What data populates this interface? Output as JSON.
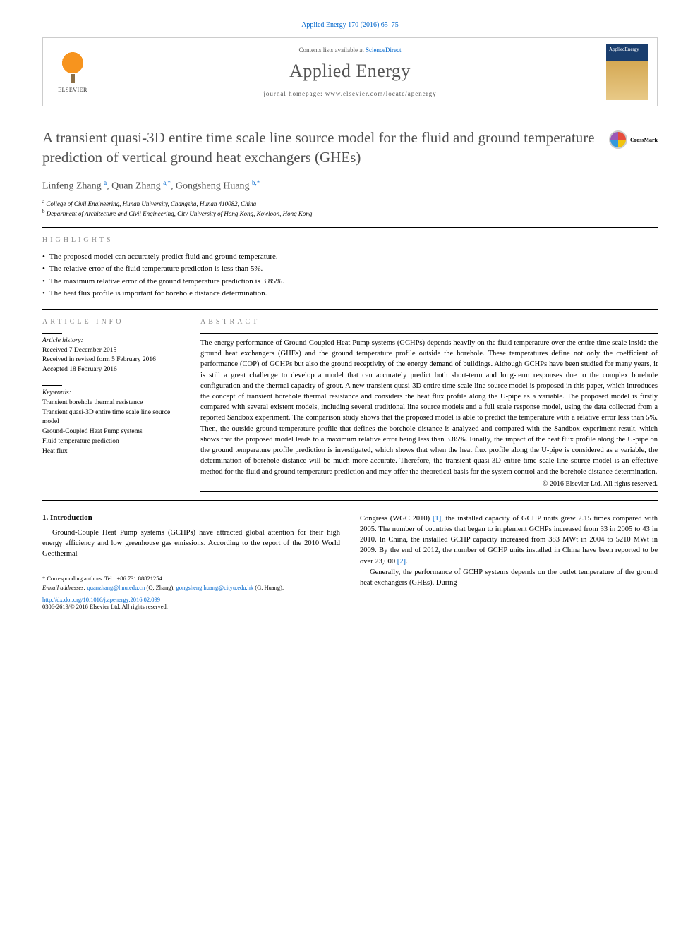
{
  "header": {
    "citation": "Applied Energy 170 (2016) 65–75",
    "contents_prefix": "Contents lists available at",
    "contents_link": "ScienceDirect",
    "journal_name": "Applied Energy",
    "homepage_label": "journal homepage: www.elsevier.com/locate/apenergy",
    "publisher": "ELSEVIER",
    "cover_label": "AppliedEnergy"
  },
  "article": {
    "title": "A transient quasi-3D entire time scale line source model for the fluid and ground temperature prediction of vertical ground heat exchangers (GHEs)",
    "crossmark": "CrossMark",
    "authors_html": "Linfeng Zhang <sup>a</sup>, Quan Zhang <sup>a,*</sup>, Gongsheng Huang <sup>b,*</sup>",
    "affiliations": [
      {
        "sup": "a",
        "text": "College of Civil Engineering, Hunan University, Changsha, Hunan 410082, China"
      },
      {
        "sup": "b",
        "text": "Department of Architecture and Civil Engineering, City University of Hong Kong, Kowloon, Hong Kong"
      }
    ]
  },
  "highlights": {
    "label": "HIGHLIGHTS",
    "items": [
      "The proposed model can accurately predict fluid and ground temperature.",
      "The relative error of the fluid temperature prediction is less than 5%.",
      "The maximum relative error of the ground temperature prediction is 3.85%.",
      "The heat flux profile is important for borehole distance determination."
    ]
  },
  "info": {
    "article_info_label": "ARTICLE INFO",
    "history_label": "Article history:",
    "received": "Received 7 December 2015",
    "revised": "Received in revised form 5 February 2016",
    "accepted": "Accepted 18 February 2016",
    "keywords_label": "Keywords:",
    "keywords": [
      "Transient borehole thermal resistance",
      "Transient quasi-3D entire time scale line source model",
      "Ground-Coupled Heat Pump systems",
      "Fluid temperature prediction",
      "Heat flux"
    ]
  },
  "abstract": {
    "label": "ABSTRACT",
    "text": "The energy performance of Ground-Coupled Heat Pump systems (GCHPs) depends heavily on the fluid temperature over the entire time scale inside the ground heat exchangers (GHEs) and the ground temperature profile outside the borehole. These temperatures define not only the coefficient of performance (COP) of GCHPs but also the ground receptivity of the energy demand of buildings. Although GCHPs have been studied for many years, it is still a great challenge to develop a model that can accurately predict both short-term and long-term responses due to the complex borehole configuration and the thermal capacity of grout. A new transient quasi-3D entire time scale line source model is proposed in this paper, which introduces the concept of transient borehole thermal resistance and considers the heat flux profile along the U-pipe as a variable. The proposed model is firstly compared with several existent models, including several traditional line source models and a full scale response model, using the data collected from a reported Sandbox experiment. The comparison study shows that the proposed model is able to predict the temperature with a relative error less than 5%. Then, the outside ground temperature profile that defines the borehole distance is analyzed and compared with the Sandbox experiment result, which shows that the proposed model leads to a maximum relative error being less than 3.85%. Finally, the impact of the heat flux profile along the U-pipe on the ground temperature profile prediction is investigated, which shows that when the heat flux profile along the U-pipe is considered as a variable, the determination of borehole distance will be much more accurate. Therefore, the transient quasi-3D entire time scale line source model is an effective method for the fluid and ground temperature prediction and may offer the theoretical basis for the system control and the borehole distance determination.",
    "copyright": "© 2016 Elsevier Ltd. All rights reserved."
  },
  "intro": {
    "heading": "1. Introduction",
    "left_para": "Ground-Couple Heat Pump systems (GCHPs) have attracted global attention for their high energy efficiency and low greenhouse gas emissions. According to the report of the 2010 World Geothermal",
    "right_para1_pre": "Congress (WGC 2010) ",
    "right_ref1": "[1]",
    "right_para1_post": ", the installed capacity of GCHP units grew 2.15 times compared with 2005. The number of countries that began to implement GCHPs increased from 33 in 2005 to 43 in 2010. In China, the installed GCHP capacity increased from 383 MWt in 2004 to 5210 MWt in 2009. By the end of 2012, the number of GCHP units installed in China have been reported to be over 23,000 ",
    "right_ref2": "[2]",
    "right_para1_end": ".",
    "right_para2": "Generally, the performance of GCHP systems depends on the outlet temperature of the ground heat exchangers (GHEs). During"
  },
  "footnotes": {
    "corresponding": "* Corresponding authors. Tel.: +86 731 88821254.",
    "email_label": "E-mail addresses:",
    "email1": "quanzhang@hnu.edu.cn",
    "email1_name": "(Q. Zhang),",
    "email2": "gongsheng.huang@cityu.edu.hk",
    "email2_name": "(G. Huang).",
    "doi": "http://dx.doi.org/10.1016/j.apenergy.2016.02.099",
    "issn_line": "0306-2619/© 2016 Elsevier Ltd. All rights reserved."
  },
  "colors": {
    "link": "#0066cc",
    "heading_grey": "#505050",
    "label_grey": "#888888"
  }
}
